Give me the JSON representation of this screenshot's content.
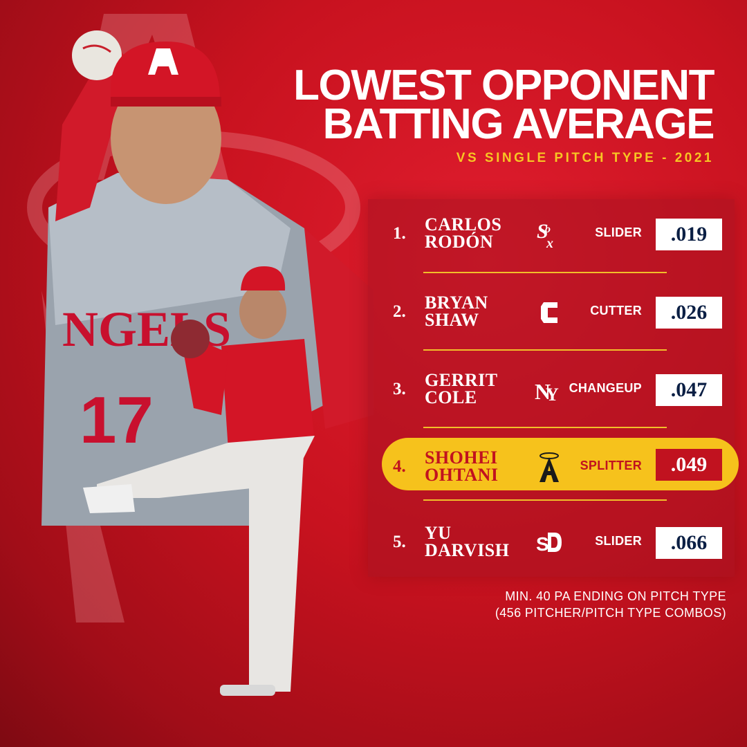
{
  "title": {
    "line1": "LOWEST OPPONENT",
    "line2": "BATTING AVERAGE",
    "subtitle": "VS SINGLE PITCH TYPE - 2021"
  },
  "colors": {
    "background": "#c8121f",
    "accent_gold": "#f6c21c",
    "value_navy": "#0b1f44",
    "white": "#ffffff"
  },
  "leaderboard": [
    {
      "rank": "1.",
      "first": "CARLOS",
      "last": "RODÓN",
      "team_logo": "white-sox-logo-icon",
      "pitch": "SLIDER",
      "avg": ".019",
      "highlight": false
    },
    {
      "rank": "2.",
      "first": "BRYAN",
      "last": "SHAW",
      "team_logo": "cleveland-c-logo-icon",
      "pitch": "CUTTER",
      "avg": ".026",
      "highlight": false
    },
    {
      "rank": "3.",
      "first": "GERRIT",
      "last": "COLE",
      "team_logo": "yankees-logo-icon",
      "pitch": "CHANGEUP",
      "avg": ".047",
      "highlight": false
    },
    {
      "rank": "4.",
      "first": "SHOHEI",
      "last": "OHTANI",
      "team_logo": "angels-logo-icon",
      "pitch": "SPLITTER",
      "avg": ".049",
      "highlight": true
    },
    {
      "rank": "5.",
      "first": "YU",
      "last": "DARVISH",
      "team_logo": "padres-logo-icon",
      "pitch": "SLIDER",
      "avg": ".066",
      "highlight": false
    }
  ],
  "footnote": {
    "line1": "MIN. 40 PA ENDING ON PITCH TYPE",
    "line2": "(456 PITCHER/PITCH TYPE COMBOS)"
  },
  "graphic": {
    "jersey_lettering": "NGELS",
    "jersey_number": "17"
  }
}
